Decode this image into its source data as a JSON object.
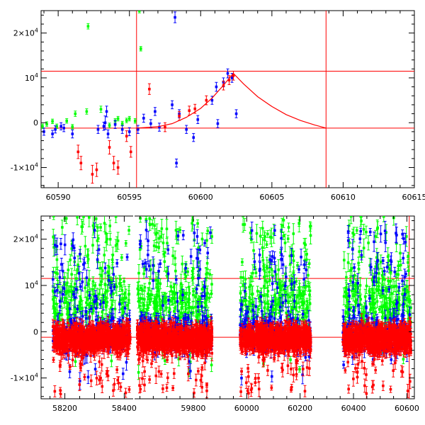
{
  "colors": {
    "green": "#00ff00",
    "blue": "#0000ff",
    "red": "#ff0000",
    "axis": "#000000"
  },
  "chart_data": [
    {
      "type": "scatter",
      "title": "",
      "xlabel": "",
      "ylabel": "",
      "xlim": [
        60588.8,
        60615
      ],
      "ylim": [
        -14500,
        25000
      ],
      "xticks": [
        60590,
        60595,
        60600,
        60605,
        60610,
        60615
      ],
      "xtick_labels": [
        "60590",
        "60595",
        "60600",
        "60605",
        "60610",
        "60615"
      ],
      "yticks": [
        -10000,
        0,
        10000,
        20000
      ],
      "ytick_labels": [
        {
          "base": "-1×10",
          "exp": "4"
        },
        {
          "base": "0",
          "exp": ""
        },
        {
          "base": "10",
          "exp": "4"
        },
        {
          "base": "2×10",
          "exp": "4"
        }
      ],
      "hlines": [
        11500,
        -1200
      ],
      "vlines": [
        60595.5,
        60608.8
      ],
      "model_curve": {
        "color": "red",
        "x": [
          60595.5,
          60597,
          60598,
          60599,
          60600,
          60600.8,
          60601.5,
          60602.3,
          60603,
          60604,
          60605,
          60606,
          60607,
          60608,
          60608.8
        ],
        "y": [
          -1200,
          -900,
          -200,
          1200,
          3200,
          5500,
          8000,
          11000,
          8700,
          5800,
          3600,
          1800,
          500,
          -500,
          -1200
        ]
      },
      "series": [
        {
          "color": "green",
          "points": [
            [
              60588.9,
              -800,
              500
            ],
            [
              60589.2,
              -300,
              500
            ],
            [
              60589.6,
              300,
              500
            ],
            [
              60589.9,
              -800,
              500
            ],
            [
              60590.6,
              400,
              500
            ],
            [
              60591.0,
              -900,
              500
            ],
            [
              60591.2,
              2000,
              600
            ],
            [
              60592.0,
              2500,
              600
            ],
            [
              60592.1,
              21500,
              600
            ],
            [
              60593.0,
              3000,
              700
            ],
            [
              60593.6,
              -600,
              500
            ],
            [
              60594.0,
              400,
              500
            ],
            [
              60594.2,
              900,
              500
            ],
            [
              60594.5,
              -200,
              500
            ],
            [
              60594.8,
              500,
              500
            ],
            [
              60595.0,
              900,
              500
            ],
            [
              60595.4,
              400,
              500
            ],
            [
              60595.7,
              25000,
              500
            ],
            [
              60595.8,
              16500,
              500
            ]
          ]
        },
        {
          "color": "blue",
          "points": [
            [
              60589.0,
              -2000,
              800
            ],
            [
              60589.6,
              -2500,
              800
            ],
            [
              60589.8,
              -1500,
              800
            ],
            [
              60590.2,
              -800,
              800
            ],
            [
              60590.4,
              -1200,
              800
            ],
            [
              60591.0,
              -2500,
              900
            ],
            [
              60592.8,
              -1500,
              900
            ],
            [
              60593.2,
              -800,
              900
            ],
            [
              60593.3,
              0,
              1500
            ],
            [
              60593.4,
              2500,
              1200
            ],
            [
              60593.5,
              -2500,
              900
            ],
            [
              60594.0,
              -400,
              900
            ],
            [
              60594.5,
              -1500,
              900
            ],
            [
              60595.0,
              -2000,
              900
            ],
            [
              60595.6,
              -1500,
              900
            ],
            [
              60596.0,
              1000,
              900
            ],
            [
              60596.5,
              -200,
              900
            ],
            [
              60596.8,
              2500,
              900
            ],
            [
              60597.1,
              -1000,
              900
            ],
            [
              60598.0,
              4000,
              900
            ],
            [
              60598.2,
              23500,
              1200
            ],
            [
              60598.3,
              -9000,
              900
            ],
            [
              60598.5,
              2000,
              900
            ],
            [
              60599.0,
              -1500,
              900
            ],
            [
              60599.5,
              -3300,
              900
            ],
            [
              60599.8,
              700,
              900
            ],
            [
              60600.8,
              5000,
              900
            ],
            [
              60601.1,
              8000,
              1000
            ],
            [
              60601.2,
              -200,
              900
            ],
            [
              60601.6,
              9000,
              1000
            ],
            [
              60601.9,
              11000,
              1000
            ],
            [
              60602.2,
              10000,
              1000
            ],
            [
              60602.5,
              2000,
              900
            ]
          ]
        },
        {
          "color": "red",
          "points": [
            [
              60591.4,
              -6500,
              1500
            ],
            [
              60591.6,
              -9000,
              1500
            ],
            [
              60592.4,
              -11500,
              2000
            ],
            [
              60592.7,
              -10500,
              1500
            ],
            [
              60593.6,
              -5500,
              1500
            ],
            [
              60593.9,
              -9000,
              1500
            ],
            [
              60594.2,
              -10000,
              1500
            ],
            [
              60594.8,
              -3000,
              1200
            ],
            [
              60595.1,
              -6500,
              1200
            ],
            [
              60596.4,
              7500,
              1200
            ],
            [
              60597.5,
              -1000,
              1000
            ],
            [
              60598.5,
              1500,
              1000
            ],
            [
              60599.2,
              2700,
              1000
            ],
            [
              60599.6,
              3100,
              1000
            ],
            [
              60600.4,
              5000,
              1000
            ],
            [
              60601.6,
              8300,
              1000
            ],
            [
              60602.0,
              9500,
              1000
            ],
            [
              60602.3,
              10500,
              1000
            ]
          ]
        }
      ]
    },
    {
      "type": "scatter",
      "title": "",
      "xlabel": "",
      "ylabel": "",
      "broken_x_axis": true,
      "segments": [
        {
          "xlim": [
            58120,
            58430
          ],
          "xticks": [
            58200,
            58300,
            58400
          ],
          "xtick_labels": [
            "58200",
            "",
            "58400"
          ],
          "clusters": [
            [
              58160,
              58420
            ]
          ]
        },
        {
          "xlim": [
            59580,
            60628
          ],
          "xticks": [
            59800,
            60000,
            60200,
            60400,
            60600
          ],
          "xtick_labels": [
            "59800",
            "60000",
            "60200",
            "60400",
            "60600"
          ],
          "clusters": [
            [
              59590,
              59870
            ],
            [
              59975,
              60240
            ],
            [
              60360,
              60615
            ]
          ]
        }
      ],
      "ylim": [
        -14500,
        25000
      ],
      "yticks": [
        -10000,
        0,
        10000,
        20000
      ],
      "ytick_labels": [
        {
          "base": "-1×10",
          "exp": "4"
        },
        {
          "base": "0",
          "exp": ""
        },
        {
          "base": "10",
          "exp": "4"
        },
        {
          "base": "2×10",
          "exp": "4"
        }
      ],
      "hlines": [
        11500,
        -1200
      ],
      "vlines": [
        60608.8
      ],
      "series": [
        {
          "color": "red",
          "band_center": -1500,
          "band_spread": 2800,
          "tail_low": -14000,
          "tail_high": 10000
        },
        {
          "color": "blue",
          "band_center": -500,
          "band_spread": 4500,
          "tail_low": -12000,
          "tail_high": 25000
        },
        {
          "color": "green",
          "band_center": 6000,
          "band_spread": 8000,
          "tail_low": -11000,
          "tail_high": 25000
        }
      ]
    }
  ]
}
